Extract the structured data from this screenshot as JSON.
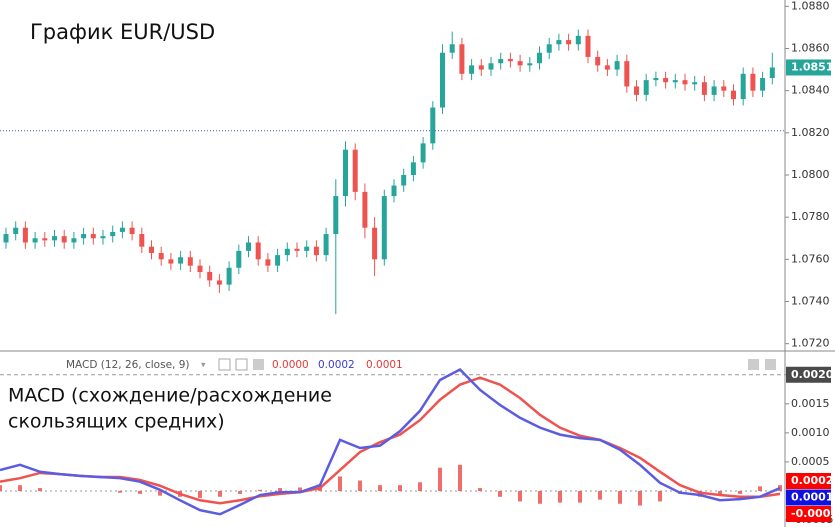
{
  "chart_data": [
    {
      "type": "candlestick",
      "title": "График EUR/USD",
      "open": [
        1.0768,
        1.0772,
        1.0775,
        1.0768,
        1.077,
        1.0769,
        1.0771,
        1.0768,
        1.077,
        1.0772,
        1.077,
        1.0771,
        1.0773,
        1.0775,
        1.0772,
        1.0766,
        1.0763,
        1.076,
        1.0758,
        1.0761,
        1.0757,
        1.0754,
        1.075,
        1.0748,
        1.0756,
        1.0764,
        1.0768,
        1.076,
        1.0757,
        1.0762,
        1.0765,
        1.0764,
        1.0766,
        1.0762,
        1.0772,
        1.079,
        1.0812,
        1.0792,
        1.0775,
        1.076,
        1.079,
        1.0795,
        1.08,
        1.0806,
        1.0815,
        1.0832,
        1.0858,
        1.0862,
        1.0848,
        1.0852,
        1.085,
        1.0853,
        1.0855,
        1.0854,
        1.0852,
        1.0853,
        1.0858,
        1.0862,
        1.0864,
        1.0862,
        1.0866,
        1.0856,
        1.0852,
        1.085,
        1.0854,
        1.0842,
        1.0838,
        1.0845,
        1.0846,
        1.0844,
        1.0845,
        1.0843,
        1.0844,
        1.0838,
        1.0842,
        1.084,
        1.0836,
        1.0848,
        1.084,
        1.0846
      ],
      "high": [
        1.0775,
        1.0778,
        1.0778,
        1.0773,
        1.0773,
        1.0774,
        1.0774,
        1.0773,
        1.0775,
        1.0775,
        1.0774,
        1.0776,
        1.0778,
        1.0778,
        1.0775,
        1.0769,
        1.0766,
        1.0763,
        1.0764,
        1.0764,
        1.076,
        1.0757,
        1.0753,
        1.0759,
        1.0767,
        1.0771,
        1.0771,
        1.0763,
        1.0765,
        1.0768,
        1.0768,
        1.0769,
        1.0769,
        1.0775,
        1.0798,
        1.0816,
        1.0815,
        1.0796,
        1.078,
        1.0793,
        1.0798,
        1.0803,
        1.0809,
        1.0818,
        1.0835,
        1.0862,
        1.0868,
        1.0865,
        1.0855,
        1.0855,
        1.0856,
        1.0858,
        1.0858,
        1.0857,
        1.0856,
        1.0861,
        1.0865,
        1.0867,
        1.0867,
        1.0869,
        1.0869,
        1.0859,
        1.0855,
        1.0857,
        1.0857,
        1.0845,
        1.0848,
        1.0849,
        1.0849,
        1.0848,
        1.0848,
        1.0847,
        1.0847,
        1.0845,
        1.0845,
        1.0843,
        1.0851,
        1.0851,
        1.0849,
        1.0858
      ],
      "low": [
        1.0765,
        1.0769,
        1.0765,
        1.0765,
        1.0766,
        1.0766,
        1.0765,
        1.0765,
        1.0767,
        1.0767,
        1.0767,
        1.0768,
        1.077,
        1.0769,
        1.0763,
        1.076,
        1.0757,
        1.0755,
        1.0755,
        1.0754,
        1.0751,
        1.0747,
        1.0744,
        1.0745,
        1.0753,
        1.0761,
        1.0757,
        1.0754,
        1.0754,
        1.0759,
        1.0761,
        1.0761,
        1.0759,
        1.0759,
        1.0734,
        1.0785,
        1.0788,
        1.077,
        1.0752,
        1.0757,
        1.0787,
        1.0792,
        1.0797,
        1.0803,
        1.0812,
        1.0829,
        1.0855,
        1.0845,
        1.0845,
        1.0847,
        1.0847,
        1.085,
        1.0851,
        1.0849,
        1.0849,
        1.085,
        1.0855,
        1.0859,
        1.0859,
        1.0859,
        1.0853,
        1.0849,
        1.0847,
        1.0847,
        1.0839,
        1.0835,
        1.0835,
        1.0842,
        1.0841,
        1.0841,
        1.084,
        1.084,
        1.0835,
        1.0835,
        1.0837,
        1.0833,
        1.0833,
        1.0837,
        1.0837,
        1.0843
      ],
      "close": [
        1.0772,
        1.0775,
        1.0768,
        1.077,
        1.0769,
        1.0771,
        1.0768,
        1.077,
        1.0772,
        1.077,
        1.0771,
        1.0773,
        1.0775,
        1.0772,
        1.0766,
        1.0763,
        1.076,
        1.0758,
        1.0761,
        1.0757,
        1.0754,
        1.075,
        1.0748,
        1.0756,
        1.0764,
        1.0768,
        1.076,
        1.0757,
        1.0762,
        1.0765,
        1.0764,
        1.0766,
        1.0762,
        1.0772,
        1.079,
        1.0812,
        1.0792,
        1.0775,
        1.076,
        1.079,
        1.0795,
        1.08,
        1.0806,
        1.0815,
        1.0832,
        1.0858,
        1.0862,
        1.0848,
        1.0852,
        1.085,
        1.0853,
        1.0855,
        1.0854,
        1.0852,
        1.0853,
        1.0858,
        1.0862,
        1.0864,
        1.0862,
        1.0866,
        1.0856,
        1.0852,
        1.085,
        1.0854,
        1.0842,
        1.0838,
        1.0845,
        1.0846,
        1.0844,
        1.0845,
        1.0843,
        1.0844,
        1.0838,
        1.0842,
        1.084,
        1.0836,
        1.0848,
        1.084,
        1.0846,
        1.0851
      ],
      "up_color": "#26a69a",
      "down_color": "#ef5350",
      "ylim": [
        1.0717,
        1.0883
      ],
      "yticks": [
        {
          "value": 1.072,
          "label": "1.0720"
        },
        {
          "value": 1.074,
          "label": "1.0740"
        },
        {
          "value": 1.076,
          "label": "1.0760"
        },
        {
          "value": 1.078,
          "label": "1.0780"
        },
        {
          "value": 1.08,
          "label": "1.0800"
        },
        {
          "value": 1.082,
          "label": "1.0820"
        },
        {
          "value": 1.084,
          "label": "1.0840"
        },
        {
          "value": 1.086,
          "label": "1.0860"
        },
        {
          "value": 1.088,
          "label": "1.0880"
        }
      ],
      "reference_line": 1.0821,
      "current_price": 1.0851
    },
    {
      "type": "macd",
      "title_lines": [
        "MACD  (схождение/расхождение",
        "скользящих средних)"
      ],
      "legend_title": "MACD (12, 26, close, 9)",
      "legend_values": [
        "0.0000",
        "0.0002",
        "0.0001"
      ],
      "series": [
        {
          "name": "MACD",
          "color": "#5c5ce0",
          "values": [
            0.00036,
            0.00045,
            0.00033,
            0.00029,
            0.00026,
            0.00024,
            0.00022,
            0.00016,
            2e-05,
            -0.00016,
            -0.00033,
            -0.0004,
            -0.00024,
            -7e-05,
            -2e-05,
            -2e-05,
            0.0001,
            0.00088,
            0.00074,
            0.00078,
            0.00103,
            0.00138,
            0.00191,
            0.00209,
            0.00174,
            0.00148,
            0.00126,
            0.00109,
            0.00097,
            0.00091,
            0.00088,
            0.00071,
            0.00045,
            0.00014,
            -3e-05,
            -7e-05,
            -0.00016,
            -0.00014,
            -0.0001,
            5e-05
          ]
        },
        {
          "name": "Signal",
          "color": "#ef5350",
          "values": [
            0.00016,
            0.00022,
            0.00031,
            0.00029,
            0.00026,
            0.00024,
            0.00024,
            0.00019,
            9e-05,
            -5e-05,
            -0.00016,
            -0.00021,
            -0.00016,
            -9e-05,
            -5e-05,
            -2e-05,
            5e-05,
            0.00036,
            0.00067,
            0.00084,
            0.00097,
            0.00122,
            0.00157,
            0.00183,
            0.00195,
            0.00183,
            0.0016,
            0.00131,
            0.00109,
            0.00095,
            0.00088,
            0.00074,
            0.00057,
            0.00033,
            0.0001,
            -3e-05,
            -7e-05,
            -0.0001,
            -0.0001,
            -5e-05
          ]
        }
      ],
      "histogram": {
        "color": "#ef5350",
        "values": [
          0.0001,
          0.0001,
          5e-05,
          0,
          0,
          0,
          -3e-05,
          -5e-05,
          -8e-05,
          -0.0001,
          -0.00012,
          -0.0001,
          -5e-05,
          2e-05,
          5e-05,
          6e-05,
          0.0001,
          0.00025,
          0.00018,
          0.0001,
          0.0001,
          0.00015,
          0.0004,
          0.00045,
          5e-05,
          -0.0001,
          -0.00018,
          -0.00022,
          -0.0002,
          -0.0002,
          -0.00015,
          -0.00022,
          -0.00025,
          -0.00018,
          -5e-05,
          -0.0001,
          -8e-05,
          -5e-05,
          8e-05,
          0.0001
        ]
      },
      "ylim": [
        -0.00062,
        0.00234
      ],
      "yticks": [
        -0.0005,
        0.0005,
        {
          "value": 0.001,
          "label": "0.0010"
        },
        0.0015,
        {
          "value": 0.002,
          "label": "0.0020"
        }
      ],
      "level_line": 0.002,
      "last_labels": [
        0.0002,
        0.0001,
        -0.0001
      ]
    }
  ]
}
